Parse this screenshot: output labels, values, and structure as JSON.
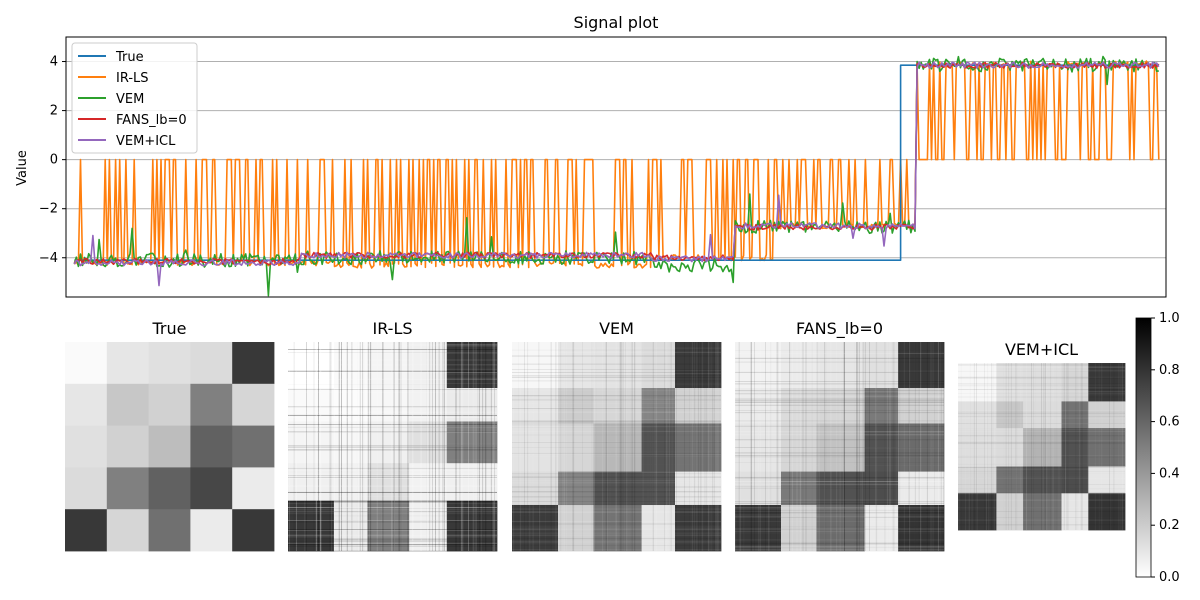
{
  "chart_data": [
    {
      "type": "line",
      "title": "Signal plot",
      "xlabel": "",
      "ylabel": "Value",
      "xlim": [
        -8,
        1057
      ],
      "ylim": [
        -5.6,
        5.0
      ],
      "y_ticks": [
        -4,
        -2,
        0,
        2,
        4
      ],
      "x_ticks": [],
      "grid": "y",
      "legend": "top-left",
      "series": [
        {
          "name": "True",
          "color": "#1f77b4",
          "segments": [
            [
              0,
              800,
              -4.1
            ],
            [
              800,
              1050,
              3.85
            ]
          ]
        },
        {
          "name": "IR-LS",
          "color": "#ff7f0e",
          "pattern": "sparse estimate jumping between the true level and 0",
          "segments": [
            [
              0,
              250,
              -4.2
            ],
            [
              250,
              560,
              -4.3
            ],
            [
              560,
              680,
              -4.0
            ],
            [
              680,
              815,
              -2.7
            ],
            [
              815,
              1050,
              3.9
            ]
          ]
        },
        {
          "name": "VEM",
          "color": "#2ca02c",
          "segments": [
            [
              0,
              220,
              -4.1
            ],
            [
              220,
              560,
              -4.0
            ],
            [
              560,
              640,
              -4.3
            ],
            [
              640,
              815,
              -2.75
            ],
            [
              815,
              1050,
              3.85
            ]
          ]
        },
        {
          "name": "FANS_lb=0",
          "color": "#d62728",
          "segments": [
            [
              0,
              220,
              -4.15
            ],
            [
              220,
              560,
              -3.9
            ],
            [
              560,
              640,
              -4.0
            ],
            [
              640,
              815,
              -2.75
            ],
            [
              815,
              1050,
              3.85
            ]
          ]
        },
        {
          "name": "VEM+ICL",
          "color": "#9467bd",
          "segments": [
            [
              0,
              220,
              -4.2
            ],
            [
              220,
              560,
              -3.9
            ],
            [
              560,
              640,
              -4.05
            ],
            [
              640,
              815,
              -2.7
            ],
            [
              815,
              1050,
              3.85
            ]
          ]
        }
      ]
    },
    {
      "type": "heatmap",
      "title": "True",
      "colormap": "Greys",
      "block_boundaries": [
        0,
        0.2,
        0.4,
        0.6,
        0.8,
        1.0
      ],
      "matrix": [
        [
          0.02,
          0.1,
          0.12,
          0.14,
          0.78
        ],
        [
          0.1,
          0.22,
          0.18,
          0.5,
          0.16
        ],
        [
          0.12,
          0.18,
          0.26,
          0.62,
          0.56
        ],
        [
          0.14,
          0.5,
          0.62,
          0.72,
          0.08
        ],
        [
          0.78,
          0.16,
          0.56,
          0.08,
          0.78
        ]
      ]
    },
    {
      "type": "heatmap",
      "title": "IR-LS",
      "colormap": "Greys",
      "block_boundaries": [
        0,
        0.22,
        0.38,
        0.58,
        0.76,
        1.0
      ],
      "matrix": [
        [
          0.0,
          0.02,
          0.04,
          0.06,
          0.78
        ],
        [
          0.02,
          0.01,
          0.03,
          0.05,
          0.08
        ],
        [
          0.04,
          0.03,
          0.06,
          0.12,
          0.5
        ],
        [
          0.06,
          0.05,
          0.12,
          0.05,
          0.06
        ],
        [
          0.78,
          0.08,
          0.5,
          0.06,
          0.78
        ]
      ]
    },
    {
      "type": "heatmap",
      "title": "VEM",
      "colormap": "Greys",
      "block_boundaries": [
        0,
        0.22,
        0.39,
        0.62,
        0.78,
        1.0
      ],
      "matrix": [
        [
          0.03,
          0.1,
          0.11,
          0.14,
          0.77
        ],
        [
          0.1,
          0.2,
          0.16,
          0.48,
          0.18
        ],
        [
          0.11,
          0.16,
          0.28,
          0.68,
          0.55
        ],
        [
          0.14,
          0.48,
          0.68,
          0.68,
          0.1
        ],
        [
          0.77,
          0.18,
          0.55,
          0.1,
          0.77
        ]
      ]
    },
    {
      "type": "heatmap",
      "title": "FANS_lb=0",
      "colormap": "Greys",
      "block_boundaries": [
        0,
        0.22,
        0.39,
        0.62,
        0.78,
        1.0
      ],
      "matrix": [
        [
          0.05,
          0.08,
          0.1,
          0.12,
          0.78
        ],
        [
          0.08,
          0.14,
          0.16,
          0.52,
          0.18
        ],
        [
          0.1,
          0.16,
          0.24,
          0.68,
          0.58
        ],
        [
          0.12,
          0.52,
          0.68,
          0.7,
          0.08
        ],
        [
          0.78,
          0.18,
          0.58,
          0.08,
          0.8
        ]
      ]
    },
    {
      "type": "heatmap",
      "title": "VEM+ICL",
      "colormap": "Greys",
      "block_boundaries": [
        0,
        0.23,
        0.39,
        0.62,
        0.78,
        1.0
      ],
      "matrix": [
        [
          0.03,
          0.12,
          0.13,
          0.16,
          0.78
        ],
        [
          0.12,
          0.22,
          0.14,
          0.55,
          0.18
        ],
        [
          0.13,
          0.14,
          0.3,
          0.68,
          0.56
        ],
        [
          0.16,
          0.55,
          0.68,
          0.7,
          0.1
        ],
        [
          0.78,
          0.18,
          0.56,
          0.1,
          0.8
        ]
      ]
    }
  ],
  "colorbar": {
    "range": [
      0.0,
      1.0
    ],
    "ticks": [
      "0.0",
      "0.2",
      "0.4",
      "0.6",
      "0.8",
      "1.0"
    ]
  }
}
